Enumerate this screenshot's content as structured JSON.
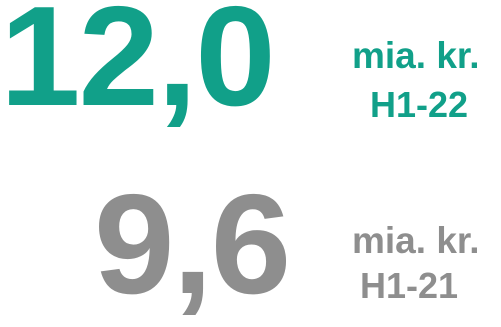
{
  "stats": [
    {
      "value": "12,0",
      "unit": "mia. kr.",
      "period": "H1-22",
      "color": "#11a089"
    },
    {
      "value": "9,6",
      "unit": "mia. kr.",
      "period": "H1-21",
      "color": "#8e8e8e"
    }
  ]
}
